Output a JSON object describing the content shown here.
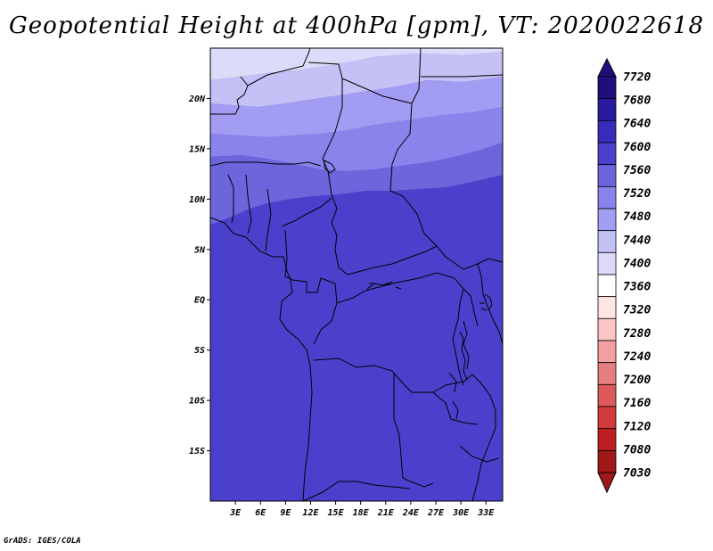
{
  "title": "Geopotential Height at 400hPa [gpm], VT: 2020022618",
  "credit": "GrADS: IGES/COLA",
  "map": {
    "lon_range": [
      0,
      35
    ],
    "lat_range": [
      -20,
      25
    ],
    "lat_ticks": [
      {
        "value": 20,
        "label": "20N"
      },
      {
        "value": 15,
        "label": "15N"
      },
      {
        "value": 10,
        "label": "10N"
      },
      {
        "value": 5,
        "label": "5N"
      },
      {
        "value": 0,
        "label": "EQ"
      },
      {
        "value": -5,
        "label": "5S"
      },
      {
        "value": -10,
        "label": "10S"
      },
      {
        "value": -15,
        "label": "15S"
      }
    ],
    "lon_ticks": [
      {
        "value": 3,
        "label": "3E"
      },
      {
        "value": 6,
        "label": "6E"
      },
      {
        "value": 9,
        "label": "9E"
      },
      {
        "value": 12,
        "label": "12E"
      },
      {
        "value": 15,
        "label": "15E"
      },
      {
        "value": 18,
        "label": "18E"
      },
      {
        "value": 21,
        "label": "21E"
      },
      {
        "value": 24,
        "label": "24E"
      },
      {
        "value": 27,
        "label": "27E"
      },
      {
        "value": 30,
        "label": "30E"
      },
      {
        "value": 33,
        "label": "33E"
      }
    ]
  },
  "chart_data": {
    "type": "heatmap",
    "variable": "Geopotential Height at 400hPa [gpm]",
    "valid_time": "2020022618",
    "field_bands_top_to_bottom": [
      {
        "level_range": [
          7400,
          7440
        ],
        "color": "#dcdcfa"
      },
      {
        "level_range": [
          7440,
          7480
        ],
        "color": "#c3c1f6"
      },
      {
        "level_range": [
          7480,
          7520
        ],
        "color": "#a29cf2"
      },
      {
        "level_range": [
          7520,
          7560
        ],
        "color": "#8a83ec"
      },
      {
        "level_range": [
          7560,
          7600
        ],
        "color": "#6d65dc"
      },
      {
        "level_range": [
          7600,
          7640
        ],
        "color": "#4b40cc"
      }
    ]
  },
  "colorbar": {
    "labels": [
      "7720",
      "7680",
      "7640",
      "7600",
      "7560",
      "7520",
      "7480",
      "7440",
      "7400",
      "7360",
      "7320",
      "7280",
      "7240",
      "7200",
      "7160",
      "7120",
      "7080",
      "7030"
    ],
    "colors": [
      "#1e0f7a",
      "#2a1b9e",
      "#3a2cba",
      "#4b40cc",
      "#6d65dc",
      "#8a83ec",
      "#a29cf2",
      "#c3c1f6",
      "#dcdcfa",
      "#ffffff",
      "#ffe4e4",
      "#fdc6c6",
      "#f4a0a0",
      "#e57e7e",
      "#dc5a5a",
      "#d33a3a",
      "#bc2020",
      "#a01818"
    ]
  }
}
